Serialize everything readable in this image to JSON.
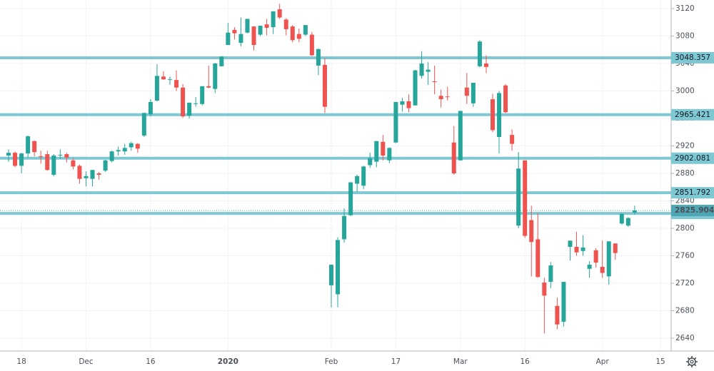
{
  "chart_data": {
    "type": "candlestick",
    "categories": [
      null,
      null,
      "18",
      null,
      null,
      null,
      null,
      null,
      null,
      null,
      null,
      null,
      "Dec",
      null,
      null,
      null,
      null,
      null,
      null,
      null,
      null,
      null,
      "16",
      null,
      null,
      null,
      null,
      null,
      null,
      null,
      null,
      null,
      null,
      null,
      "2020",
      null,
      null,
      null,
      null,
      null,
      null,
      null,
      null,
      null,
      null,
      null,
      null,
      null,
      null,
      null,
      "Feb",
      null,
      null,
      null,
      null,
      null,
      null,
      null,
      null,
      null,
      "17",
      null,
      null,
      null,
      null,
      null,
      null,
      null,
      null,
      null,
      "Mar",
      null,
      null,
      null,
      null,
      null,
      null,
      null,
      null,
      null,
      "16",
      null,
      null,
      null,
      null,
      null,
      null,
      null,
      null,
      null,
      null,
      null,
      "Apr",
      null,
      null,
      null,
      null,
      null,
      null,
      null,
      null,
      "15"
    ],
    "open": [
      2906,
      2910,
      2891,
      2909,
      2927,
      2905,
      2908,
      2878,
      2907,
      2908,
      2899,
      2891,
      2873,
      2872,
      2880,
      2884,
      2898,
      2912,
      2912,
      2918,
      2923,
      2935,
      2966,
      2986,
      3021,
      3017,
      3016,
      3005,
      2964,
      2982,
      2981,
      3007,
      3003,
      3036,
      3067,
      3089,
      3070,
      3085,
      3094,
      3082,
      3097,
      3093,
      3119,
      3104,
      3094,
      3083,
      3082,
      3082,
      3037,
      3038,
      2717,
      2704,
      2784,
      2819,
      2865,
      2862,
      2892,
      2897,
      2926,
      2899,
      2925,
      2980,
      2985,
      2979,
      3022,
      3028,
      3014,
      2993,
      2992,
      2925,
      2899,
      3005,
      2982,
      3036,
      3040,
      2988,
      2933,
      3008,
      2936,
      2804,
      2899,
      2812,
      2784,
      2721,
      2722,
      2687,
      2664,
      2773,
      2773,
      2767,
      2741,
      2768,
      2744,
      2730,
      2778,
      2807,
      2804,
      2823,
      null,
      null,
      null,
      null
    ],
    "high": [
      2915,
      2912,
      2910,
      2935,
      2928,
      2913,
      2913,
      2908,
      2915,
      2910,
      2902,
      2893,
      2883,
      2885,
      2882,
      2900,
      2913,
      2919,
      2923,
      2926,
      2924,
      2968,
      2988,
      3039,
      3029,
      3021,
      3030,
      3010,
      2983,
      2991,
      3007,
      3037,
      3041,
      3051,
      3099,
      3093,
      3107,
      3105,
      3094,
      3095,
      3105,
      3116,
      3127,
      3106,
      3096,
      3091,
      3096,
      3086,
      3062,
      3048,
      2747,
      2787,
      2829,
      2867,
      2878,
      2891,
      2910,
      2927,
      2936,
      2918,
      2984,
      2990,
      2995,
      3031,
      3058,
      3042,
      3037,
      3002,
      3006,
      2949,
      2971,
      3026,
      3012,
      3074,
      3052,
      2996,
      3000,
      3010,
      2944,
      2911,
      2899,
      2833,
      2822,
      2728,
      2751,
      2699,
      2722,
      2782,
      2795,
      2790,
      2752,
      2771,
      2782,
      2781,
      2778,
      2822,
      2816,
      2833,
      null,
      null,
      null,
      null
    ],
    "low": [
      2897,
      2889,
      2880,
      2903,
      2905,
      2894,
      2884,
      2876,
      2901,
      2896,
      2886,
      2865,
      2861,
      2861,
      2871,
      2882,
      2896,
      2906,
      2907,
      2913,
      2910,
      2933,
      2963,
      2985,
      3016,
      3009,
      3000,
      2961,
      2960,
      2977,
      2979,
      3004,
      2997,
      3036,
      3067,
      3075,
      3065,
      3084,
      3059,
      3080,
      3081,
      3083,
      3105,
      3081,
      3071,
      3071,
      3080,
      3051,
      3023,
      2968,
      2685,
      2685,
      2779,
      2818,
      2853,
      2857,
      2888,
      2889,
      2899,
      2895,
      2924,
      2970,
      2969,
      2979,
      3018,
      3009,
      2995,
      2976,
      2986,
      2878,
      2899,
      2981,
      2977,
      3034,
      3026,
      2940,
      2909,
      2968,
      2913,
      2800,
      2786,
      2730,
      2728,
      2647,
      2713,
      2653,
      2657,
      2753,
      2760,
      2760,
      2728,
      2743,
      2728,
      2718,
      2754,
      2805,
      2802,
      2820,
      null,
      null,
      null,
      null
    ],
    "close": [
      2910,
      2891,
      2909,
      2934,
      2911,
      2904,
      2885,
      2906,
      2907,
      2903,
      2890,
      2872,
      2876,
      2885,
      2878,
      2899,
      2912,
      2914,
      2917,
      2924,
      2916,
      2968,
      2984,
      3022,
      3017,
      3017,
      3005,
      2963,
      2983,
      2982,
      3007,
      3005,
      3040,
      3050,
      3085,
      3084,
      3083,
      3105,
      3067,
      3095,
      3092,
      3116,
      3107,
      3090,
      3074,
      3076,
      3096,
      3052,
      3061,
      2977,
      2747,
      2783,
      2818,
      2867,
      2876,
      2890,
      2902,
      2927,
      2906,
      2917,
      2984,
      2985,
      2975,
      3030,
      3040,
      3031,
      3013,
      2988,
      2991,
      2880,
      2971,
      2993,
      3012,
      3072,
      3035,
      2943,
      2997,
      2969,
      2923,
      2887,
      2789,
      2780,
      2729,
      2702,
      2746,
      2660,
      2722,
      2782,
      2765,
      2772,
      2747,
      2750,
      2735,
      2781,
      2764,
      2821,
      2815,
      2826,
      null,
      null,
      null,
      null
    ],
    "up_color": "#26a69a",
    "down_color": "#ef5350",
    "ylim": [
      2621.3,
      3132.5
    ],
    "yticks": [
      2640,
      2680,
      2720,
      2760,
      2800,
      2840,
      2880,
      2920,
      2960,
      3000,
      3040,
      3080,
      3120
    ],
    "levels": [
      3048.357,
      2965.421,
      2902.081,
      2851.792,
      2821.75
    ],
    "level_color": "#7ec8d3",
    "last_price": 2825.904,
    "last_price_color": "#4fa7b3",
    "grid": true
  }
}
